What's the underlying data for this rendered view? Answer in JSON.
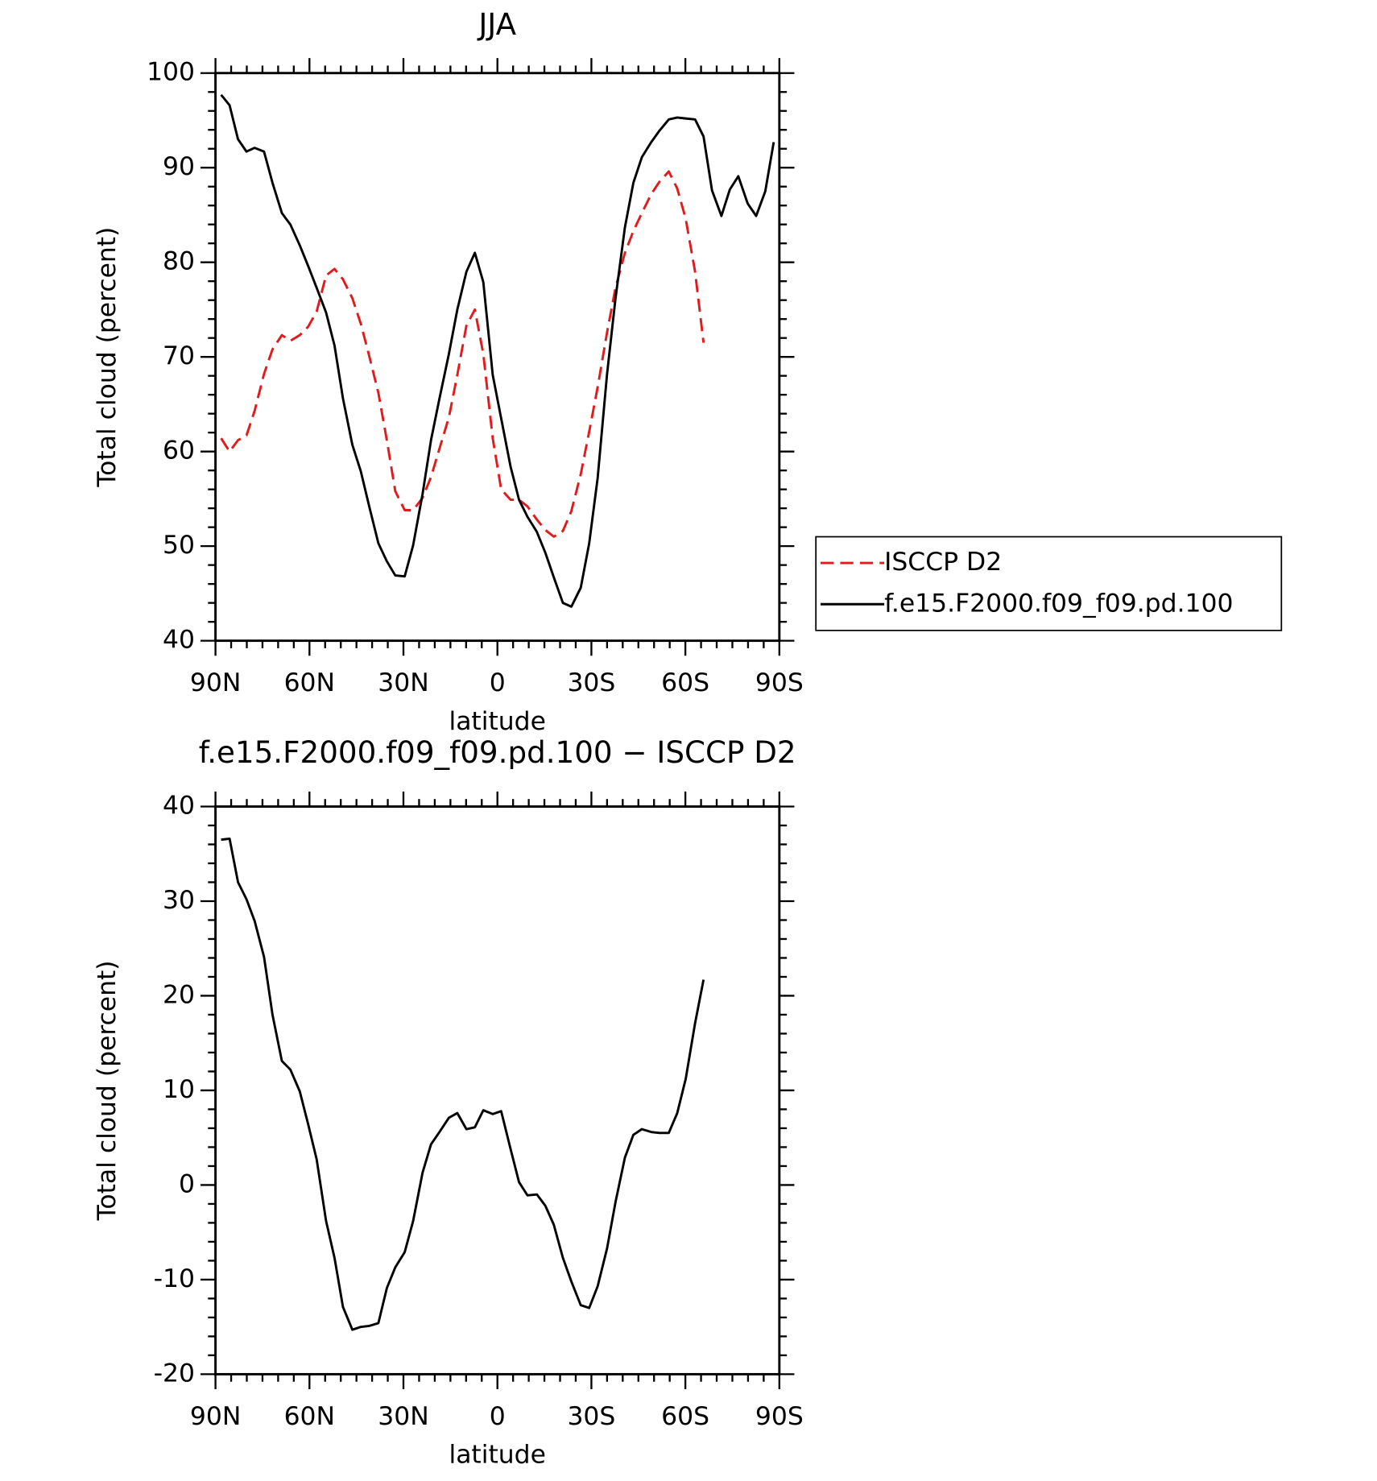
{
  "chart_data": [
    {
      "type": "line",
      "title": "JJA",
      "xlabel": "latitude",
      "ylabel": "Total cloud (percent)",
      "x": [
        88.2,
        85.5,
        82.8,
        80.1,
        77.5,
        74.5,
        71.8,
        68.8,
        66.1,
        63.1,
        60.4,
        57.7,
        54.7,
        52.0,
        49.3,
        46.3,
        43.6,
        41.0,
        38.0,
        35.3,
        32.6,
        29.6,
        26.9,
        23.9,
        21.2,
        18.5,
        15.5,
        12.8,
        9.9,
        7.2,
        4.5,
        1.5,
        -1.2,
        -4.2,
        -6.9,
        -9.6,
        -12.6,
        -15.3,
        -18.0,
        -20.9,
        -23.6,
        -26.6,
        -29.3,
        -32.0,
        -35.0,
        -37.7,
        -40.7,
        -43.4,
        -46.1,
        -49.1,
        -51.7,
        -54.7,
        -57.4,
        -60.1,
        -63.1,
        -65.8,
        -68.5,
        -71.5,
        -74.2,
        -76.9,
        -79.9,
        -82.6,
        -85.5,
        -88.2
      ],
      "series": [
        {
          "name": "ISCCP D2",
          "color": "#e31a1c",
          "dashed": true,
          "values": [
            61.4,
            60.0,
            61.2,
            61.7,
            64.3,
            68.2,
            70.8,
            72.3,
            71.7,
            72.3,
            73.2,
            74.8,
            78.6,
            79.3,
            78.2,
            76.2,
            73.5,
            70.2,
            66.2,
            61.2,
            55.8,
            53.8,
            53.8,
            55.1,
            57.3,
            60.3,
            63.6,
            68.1,
            73.3,
            75.0,
            70.3,
            61.4,
            56.0,
            54.9,
            54.9,
            54.2,
            52.8,
            51.7,
            51.0,
            51.6,
            53.7,
            57.6,
            62.1,
            66.8,
            72.6,
            77.3,
            81.0,
            83.3,
            85.2,
            87.2,
            88.5,
            89.6,
            87.8,
            84.6,
            79.0,
            71.5,
            null,
            null,
            null,
            null,
            null,
            null,
            null,
            null
          ]
        },
        {
          "name": "f.e15.F2000.f09_f09.pd.100",
          "color": "#000000",
          "dashed": false,
          "values": [
            97.7,
            96.6,
            93.0,
            91.7,
            92.1,
            91.7,
            88.4,
            85.2,
            84.0,
            81.8,
            79.6,
            77.3,
            74.7,
            71.2,
            65.6,
            60.7,
            57.9,
            54.3,
            50.3,
            48.4,
            46.9,
            46.8,
            50.1,
            55.5,
            61.2,
            65.6,
            70.3,
            75.0,
            79.0,
            81.0,
            77.9,
            68.1,
            63.5,
            58.4,
            54.9,
            53.1,
            51.5,
            49.3,
            46.7,
            44.0,
            43.6,
            45.6,
            50.3,
            57.2,
            68.2,
            76.2,
            83.7,
            88.4,
            91.1,
            92.7,
            93.9,
            95.1,
            95.3,
            95.2,
            95.1,
            93.3,
            87.6,
            84.9,
            87.7,
            89.1,
            86.2,
            84.9,
            87.5,
            92.7
          ]
        }
      ],
      "xlim": [
        90,
        -90
      ],
      "xticks": [
        {
          "value": 90,
          "label": "90N"
        },
        {
          "value": 60,
          "label": "60N"
        },
        {
          "value": 30,
          "label": "30N"
        },
        0,
        {
          "value": -30,
          "label": "30S"
        },
        {
          "value": -60,
          "label": "60S"
        },
        {
          "value": -90,
          "label": "90S"
        }
      ],
      "ylim": [
        40,
        100
      ],
      "yticks": [
        40,
        50,
        60,
        70,
        80,
        90,
        100
      ],
      "legend": "right"
    },
    {
      "type": "line",
      "title": "f.e15.F2000.f09_f09.pd.100 − ISCCP D2",
      "xlabel": "latitude",
      "ylabel": "Total cloud (percent)",
      "x": [
        88.2,
        85.5,
        82.8,
        80.1,
        77.5,
        74.5,
        71.8,
        68.8,
        66.1,
        63.1,
        60.4,
        57.7,
        54.7,
        52.0,
        49.3,
        46.3,
        43.6,
        41.0,
        38.0,
        35.3,
        32.6,
        29.6,
        26.9,
        23.9,
        21.2,
        18.5,
        15.5,
        12.8,
        9.9,
        7.2,
        4.5,
        1.5,
        -1.2,
        -4.2,
        -6.9,
        -9.6,
        -12.6,
        -15.3,
        -18.0,
        -20.9,
        -23.6,
        -26.6,
        -29.3,
        -32.0,
        -35.0,
        -37.7,
        -40.7,
        -43.4,
        -46.1,
        -49.1,
        -51.7,
        -54.7,
        -57.4,
        -60.1,
        -63.1,
        -65.8
      ],
      "series": [
        {
          "color": "#000000",
          "dashed": false,
          "values": [
            36.5,
            36.6,
            32.0,
            30.2,
            27.9,
            24.1,
            18.0,
            13.1,
            12.2,
            9.9,
            6.4,
            2.7,
            -3.8,
            -7.7,
            -12.9,
            -15.3,
            -15.0,
            -14.9,
            -14.6,
            -10.9,
            -8.7,
            -7.1,
            -3.8,
            1.3,
            4.3,
            5.6,
            7.1,
            7.6,
            5.9,
            6.1,
            7.9,
            7.5,
            7.8,
            3.8,
            0.3,
            -1.1,
            -1.0,
            -2.2,
            -4.2,
            -7.7,
            -10.2,
            -12.7,
            -13.0,
            -10.7,
            -6.7,
            -1.8,
            2.9,
            5.3,
            5.9,
            5.6,
            5.5,
            5.5,
            7.6,
            11.2,
            17.1,
            21.7
          ]
        }
      ],
      "xlim": [
        90,
        -90
      ],
      "xticks": [
        {
          "value": 90,
          "label": "90N"
        },
        {
          "value": 60,
          "label": "60N"
        },
        {
          "value": 30,
          "label": "30N"
        },
        0,
        {
          "value": -30,
          "label": "30S"
        },
        {
          "value": -60,
          "label": "60S"
        },
        {
          "value": -90,
          "label": "90S"
        }
      ],
      "ylim": [
        -20,
        40
      ],
      "yticks": [
        -20,
        -10,
        0,
        10,
        20,
        30,
        40
      ]
    }
  ]
}
